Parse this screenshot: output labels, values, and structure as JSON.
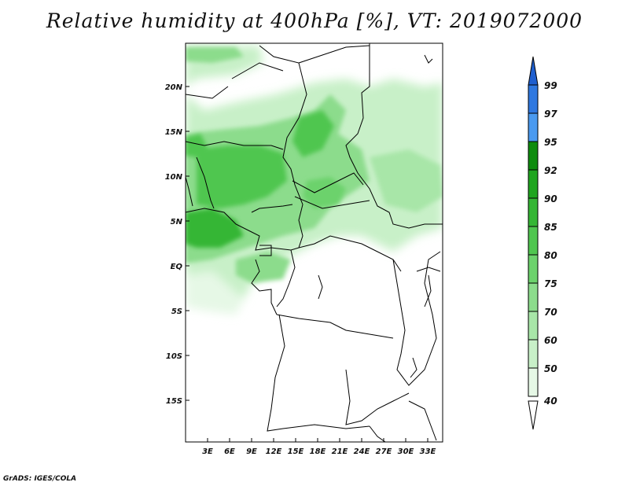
{
  "title": "Relative humidity at 400hPa [%], VT: 2019072000",
  "credit": "GrADS: IGES/COLA",
  "map": {
    "lat_ticks": [
      "20N",
      "15N",
      "10N",
      "5N",
      "EQ",
      "5S",
      "10S",
      "15S"
    ],
    "lon_ticks": [
      "3E",
      "6E",
      "9E",
      "12E",
      "15E",
      "18E",
      "21E",
      "24E",
      "27E",
      "30E",
      "33E"
    ]
  },
  "colorbar": {
    "levels": [
      "40",
      "50",
      "60",
      "70",
      "75",
      "80",
      "85",
      "90",
      "92",
      "95",
      "97",
      "99"
    ],
    "colors": [
      "#ffffff",
      "#e6f8e6",
      "#c8f0c8",
      "#a8e6a8",
      "#8cdc8c",
      "#6cd26c",
      "#4fc64f",
      "#34b634",
      "#1fa51f",
      "#0e8c0e",
      "#4a9af0",
      "#2f78e0",
      "#1f5fcf"
    ]
  }
}
